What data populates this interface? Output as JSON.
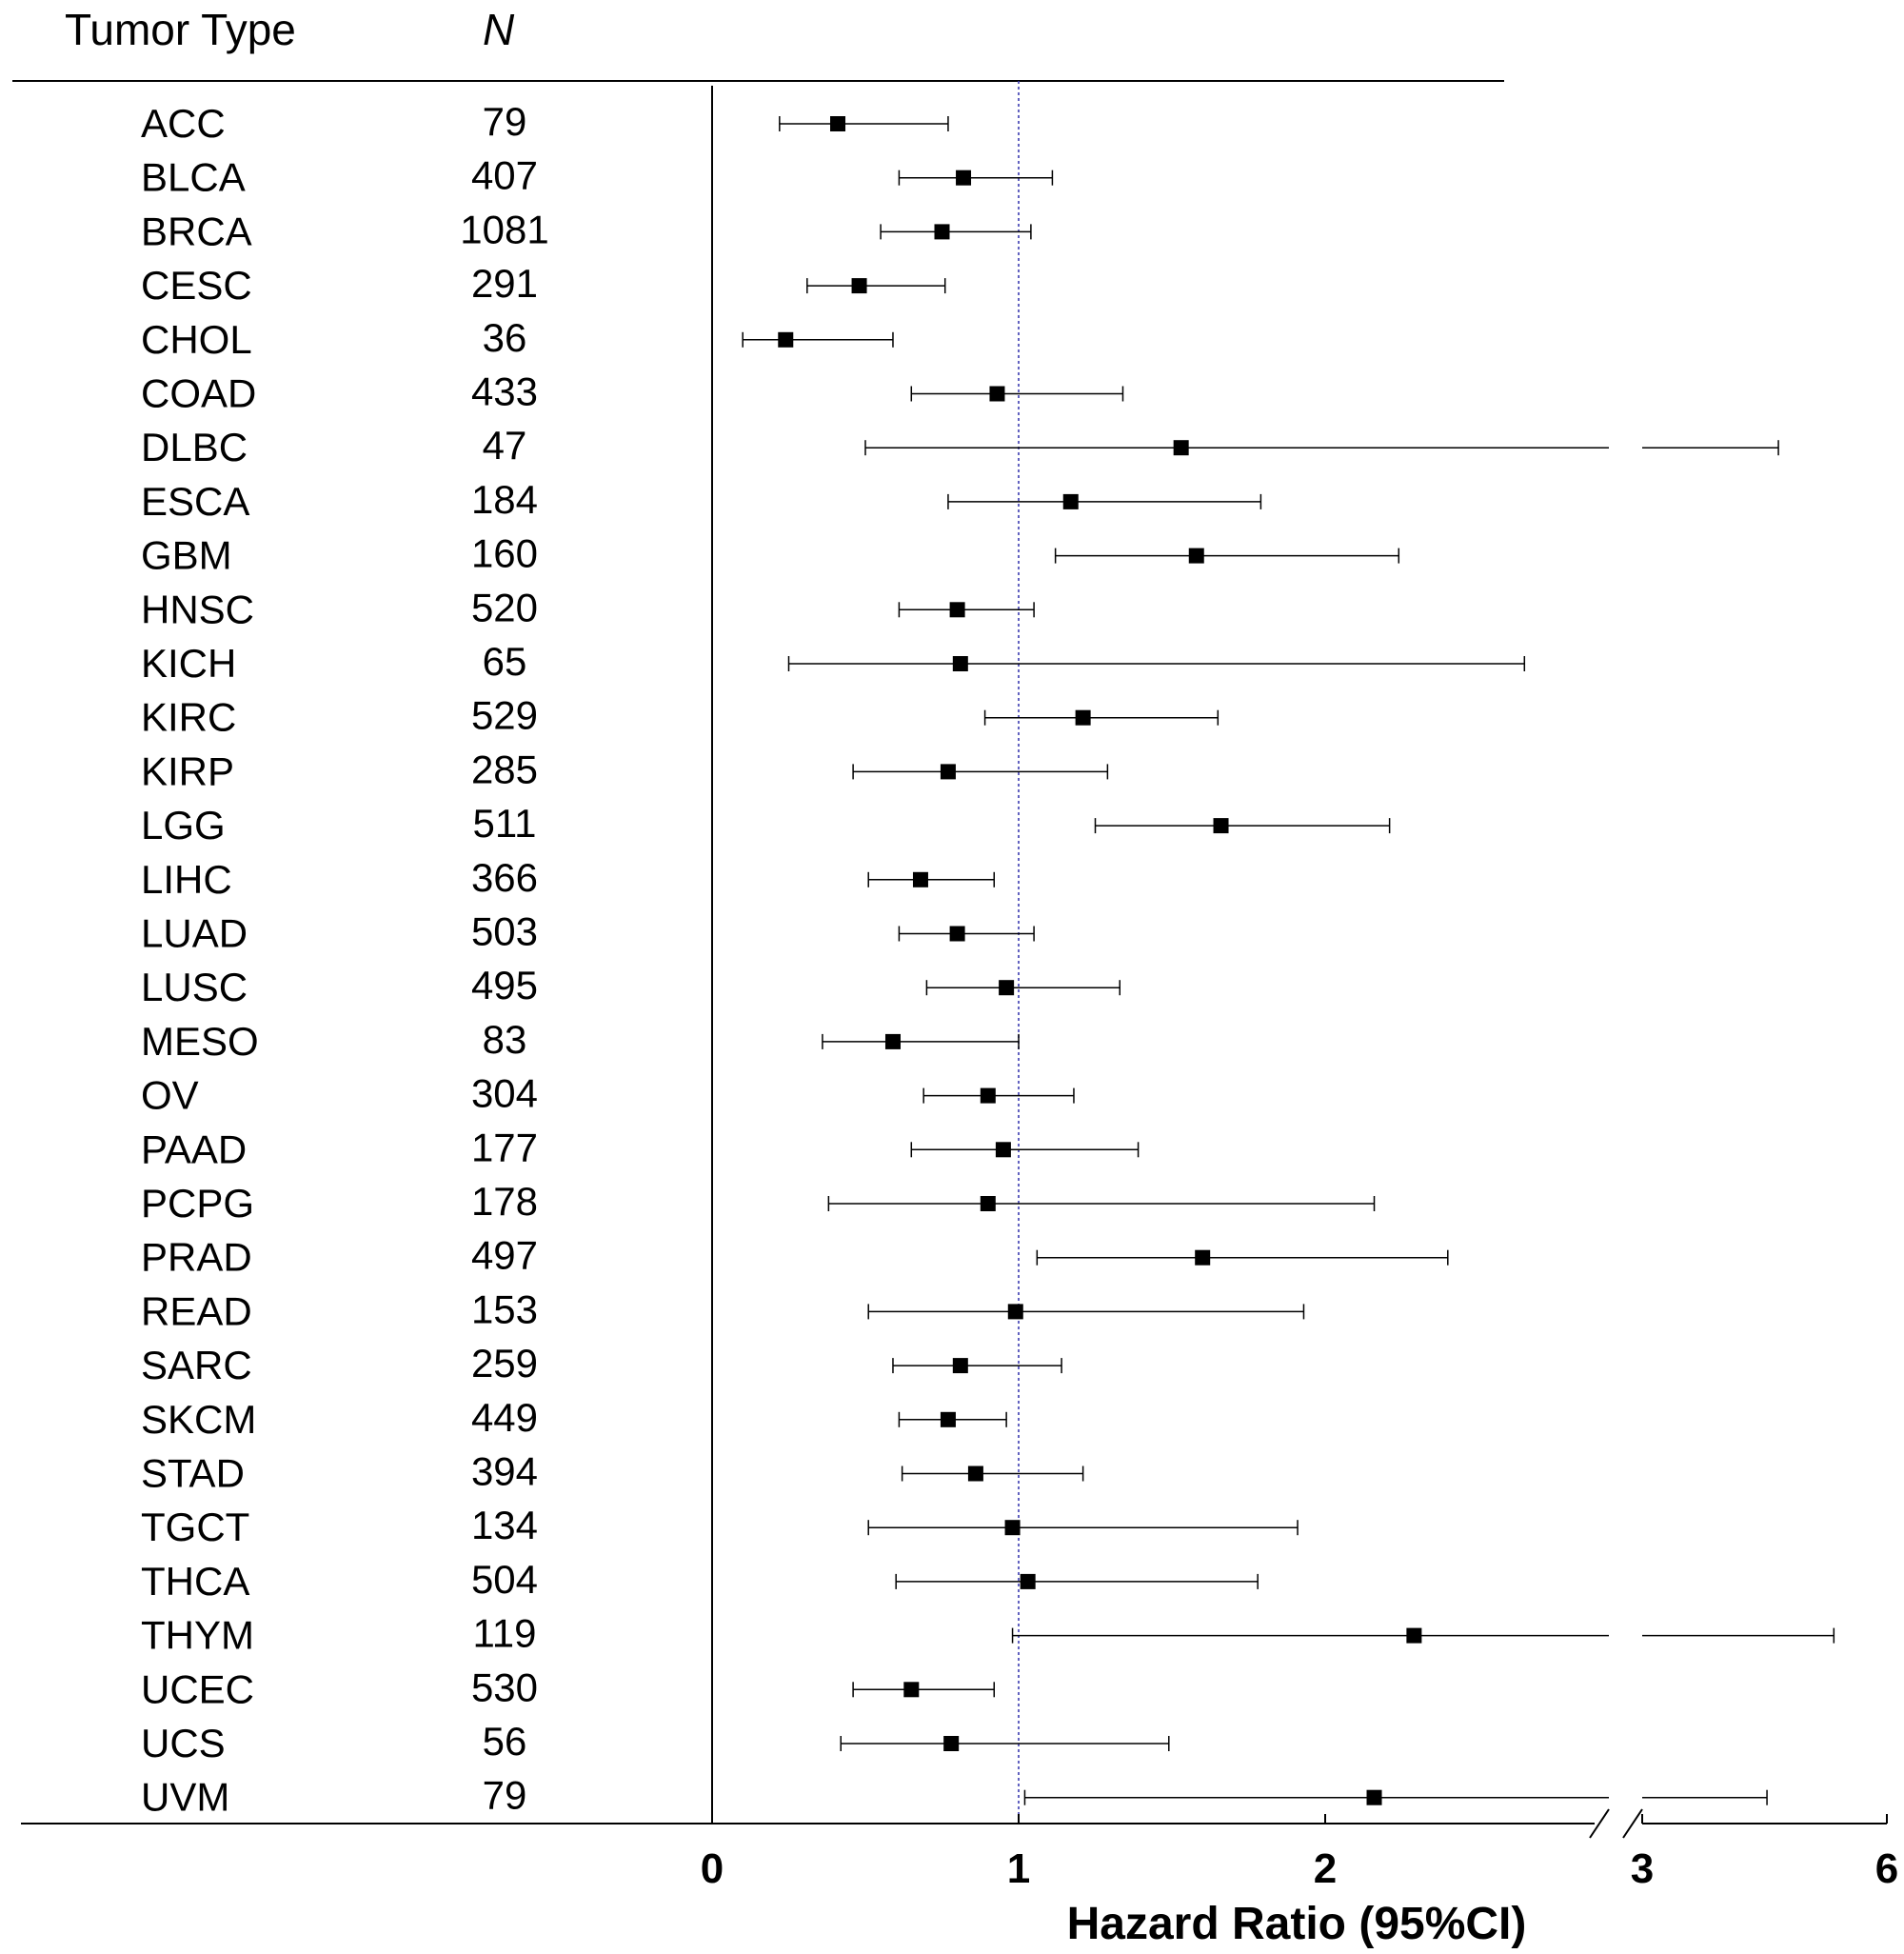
{
  "chart_data": {
    "type": "forest",
    "header": {
      "label_col": "Tumor Type",
      "n_col": "N"
    },
    "xlabel": "Hazard Ratio (95%CI)",
    "x_ticks": [
      "0",
      "1",
      "2",
      "3",
      "6"
    ],
    "x_scale": "broken axis: linear 0-2, break, 3 to 6 compressed",
    "reference_line": 1,
    "rows": [
      {
        "type": "ACC",
        "n": "79",
        "hr": 0.41,
        "lo": 0.22,
        "hi": 0.77
      },
      {
        "type": "BLCA",
        "n": "407",
        "hr": 0.82,
        "lo": 0.61,
        "hi": 1.11
      },
      {
        "type": "BRCA",
        "n": "1081",
        "hr": 0.75,
        "lo": 0.55,
        "hi": 1.04
      },
      {
        "type": "CESC",
        "n": "291",
        "hr": 0.48,
        "lo": 0.31,
        "hi": 0.76
      },
      {
        "type": "CHOL",
        "n": "36",
        "hr": 0.24,
        "lo": 0.1,
        "hi": 0.59
      },
      {
        "type": "COAD",
        "n": "433",
        "hr": 0.93,
        "lo": 0.65,
        "hi": 1.34
      },
      {
        "type": "DLBC",
        "n": "47",
        "hr": 1.53,
        "lo": 0.5,
        "hi": 4.67
      },
      {
        "type": "ESCA",
        "n": "184",
        "hr": 1.17,
        "lo": 0.77,
        "hi": 1.79
      },
      {
        "type": "GBM",
        "n": "160",
        "hr": 1.58,
        "lo": 1.12,
        "hi": 2.24
      },
      {
        "type": "HNSC",
        "n": "520",
        "hr": 0.8,
        "lo": 0.61,
        "hi": 1.05
      },
      {
        "type": "KICH",
        "n": "65",
        "hr": 0.81,
        "lo": 0.25,
        "hi": 2.65
      },
      {
        "type": "KIRC",
        "n": "529",
        "hr": 1.21,
        "lo": 0.89,
        "hi": 1.65
      },
      {
        "type": "KIRP",
        "n": "285",
        "hr": 0.77,
        "lo": 0.46,
        "hi": 1.29
      },
      {
        "type": "LGG",
        "n": "511",
        "hr": 1.66,
        "lo": 1.25,
        "hi": 2.21
      },
      {
        "type": "LIHC",
        "n": "366",
        "hr": 0.68,
        "lo": 0.51,
        "hi": 0.92
      },
      {
        "type": "LUAD",
        "n": "503",
        "hr": 0.8,
        "lo": 0.61,
        "hi": 1.05
      },
      {
        "type": "LUSC",
        "n": "495",
        "hr": 0.96,
        "lo": 0.7,
        "hi": 1.33
      },
      {
        "type": "MESO",
        "n": "83",
        "hr": 0.59,
        "lo": 0.36,
        "hi": 1.0
      },
      {
        "type": "OV",
        "n": "304",
        "hr": 0.9,
        "lo": 0.69,
        "hi": 1.18
      },
      {
        "type": "PAAD",
        "n": "177",
        "hr": 0.95,
        "lo": 0.65,
        "hi": 1.39
      },
      {
        "type": "PCPG",
        "n": "178",
        "hr": 0.9,
        "lo": 0.38,
        "hi": 2.16
      },
      {
        "type": "PRAD",
        "n": "497",
        "hr": 1.6,
        "lo": 1.06,
        "hi": 2.4
      },
      {
        "type": "READ",
        "n": "153",
        "hr": 0.99,
        "lo": 0.51,
        "hi": 1.93
      },
      {
        "type": "SARC",
        "n": "259",
        "hr": 0.81,
        "lo": 0.59,
        "hi": 1.14
      },
      {
        "type": "SKCM",
        "n": "449",
        "hr": 0.77,
        "lo": 0.61,
        "hi": 0.96
      },
      {
        "type": "STAD",
        "n": "394",
        "hr": 0.86,
        "lo": 0.62,
        "hi": 1.21
      },
      {
        "type": "TGCT",
        "n": "134",
        "hr": 0.98,
        "lo": 0.51,
        "hi": 1.91
      },
      {
        "type": "THCA",
        "n": "504",
        "hr": 1.03,
        "lo": 0.6,
        "hi": 1.78
      },
      {
        "type": "THYM",
        "n": "119",
        "hr": 2.29,
        "lo": 0.98,
        "hi": 5.35
      },
      {
        "type": "UCEC",
        "n": "530",
        "hr": 0.65,
        "lo": 0.46,
        "hi": 0.92
      },
      {
        "type": "UCS",
        "n": "56",
        "hr": 0.78,
        "lo": 0.42,
        "hi": 1.49
      },
      {
        "type": "UVM",
        "n": "79",
        "hr": 2.16,
        "lo": 1.02,
        "hi": 4.53
      }
    ]
  }
}
